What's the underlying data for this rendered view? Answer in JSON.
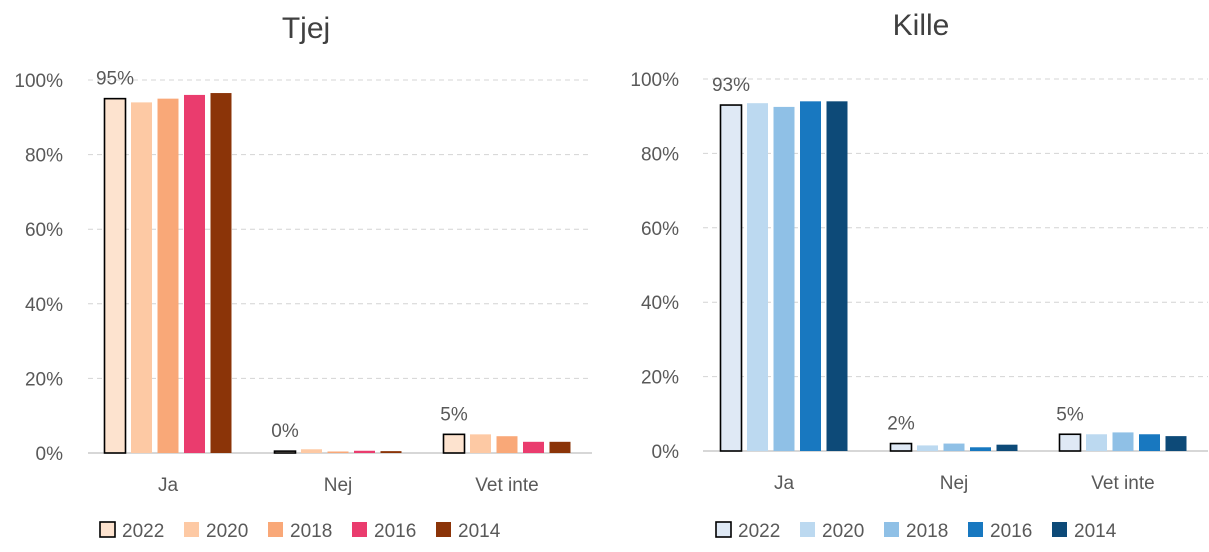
{
  "chart_data": [
    {
      "type": "bar",
      "title": "Tjej",
      "categories": [
        "Ja",
        "Nej",
        "Vet inte"
      ],
      "ylim": [
        0,
        100
      ],
      "yticks": [
        "0%",
        "20%",
        "40%",
        "60%",
        "80%",
        "100%"
      ],
      "grid": true,
      "legend": "bottom",
      "series": [
        {
          "name": "2022",
          "values": [
            95,
            0.5,
            5
          ],
          "color": "#fde3cf",
          "outline": "#000000"
        },
        {
          "name": "2020",
          "values": [
            94,
            1,
            5
          ],
          "color": "#fdc9a4"
        },
        {
          "name": "2018",
          "values": [
            95,
            0.3,
            4.5
          ],
          "color": "#f9a878"
        },
        {
          "name": "2016",
          "values": [
            96,
            0.6,
            3
          ],
          "color": "#ea3c6e"
        },
        {
          "name": "2014",
          "values": [
            96.5,
            0.5,
            3
          ],
          "color": "#8b3408"
        }
      ],
      "data_labels": [
        "95%",
        "0%",
        "5%"
      ]
    },
    {
      "type": "bar",
      "title": "Kille",
      "categories": [
        "Ja",
        "Nej",
        "Vet inte"
      ],
      "ylim": [
        0,
        100
      ],
      "yticks": [
        "0%",
        "20%",
        "40%",
        "60%",
        "80%",
        "100%"
      ],
      "grid": true,
      "legend": "bottom",
      "series": [
        {
          "name": "2022",
          "values": [
            93,
            2,
            4.5
          ],
          "color": "#dfe9f5",
          "outline": "#000000"
        },
        {
          "name": "2020",
          "values": [
            93.5,
            1.5,
            4.5
          ],
          "color": "#bcd9f0"
        },
        {
          "name": "2018",
          "values": [
            92.5,
            2,
            5
          ],
          "color": "#8fc0e6"
        },
        {
          "name": "2016",
          "values": [
            94,
            1,
            4.5
          ],
          "color": "#1878c0"
        },
        {
          "name": "2014",
          "values": [
            94,
            1.7,
            4
          ],
          "color": "#0d4a78"
        }
      ],
      "data_labels": [
        "93%",
        "2%",
        "5%"
      ]
    }
  ]
}
